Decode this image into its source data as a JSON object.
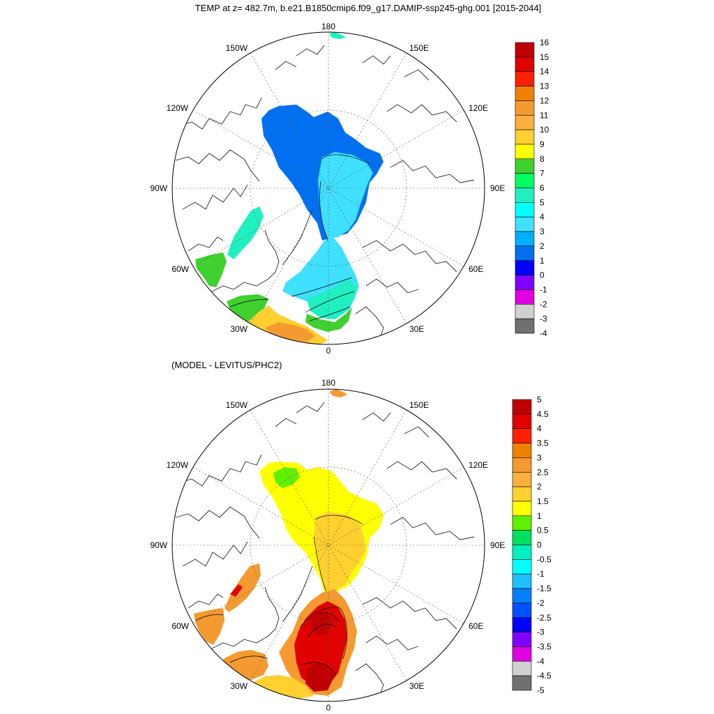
{
  "figure": {
    "title": "TEMP at z= 482.7m, b.e21.B1850cmip6.f09_g17.DAMIP-ssp245-ghg.001 [2015-2044]",
    "subtitle": "(MODEL - LEVITUS/PHC2)"
  },
  "longitude_labels": {
    "lon_180": "180",
    "lon_150w": "150W",
    "lon_150e": "150E",
    "lon_120w": "120W",
    "lon_120e": "120E",
    "lon_90w": "90W",
    "lon_90e": "90E",
    "lon_60w": "60W",
    "lon_60e": "60E",
    "lon_30w": "30W",
    "lon_30e": "30E",
    "lon_0": "0"
  },
  "maps": [
    {
      "name": "model-temperature",
      "projection": "north polar stereographic",
      "colorbar": {
        "labels": [
          "16",
          "15",
          "14",
          "13",
          "12",
          "11",
          "10",
          "9",
          "8",
          "7",
          "6",
          "5",
          "4",
          "3",
          "2",
          "1",
          "0",
          "-1",
          "-2",
          "-3",
          "-4"
        ],
        "colors": [
          "#c00000",
          "#e00000",
          "#ff2000",
          "#f08000",
          "#f59a30",
          "#fbb040",
          "#ffd030",
          "#ffff00",
          "#40d030",
          "#00ff60",
          "#20f0c0",
          "#00ffff",
          "#40e0ff",
          "#00b0ff",
          "#0070f0",
          "#0000ff",
          "#8000ff",
          "#e000e0",
          "#d0d0d0",
          "#707070"
        ]
      }
    },
    {
      "name": "model-minus-levitus",
      "projection": "north polar stereographic",
      "colorbar": {
        "labels": [
          "5",
          "4.5",
          "4",
          "3.5",
          "3",
          "2.5",
          "2",
          "1.5",
          "1",
          "0.5",
          "0",
          "-0.5",
          "-1",
          "-1.5",
          "-2",
          "-2.5",
          "-3",
          "-3.5",
          "-4",
          "-4.5",
          "-5"
        ],
        "colors": [
          "#c00000",
          "#e00000",
          "#ff2000",
          "#f08000",
          "#f59a30",
          "#fbb040",
          "#ffd030",
          "#ffff00",
          "#60f000",
          "#00e060",
          "#00f0c0",
          "#00ffff",
          "#20c0ff",
          "#0080ff",
          "#0050ff",
          "#0000ff",
          "#8000ff",
          "#e000e0",
          "#d0d0d0",
          "#707070"
        ]
      }
    }
  ]
}
